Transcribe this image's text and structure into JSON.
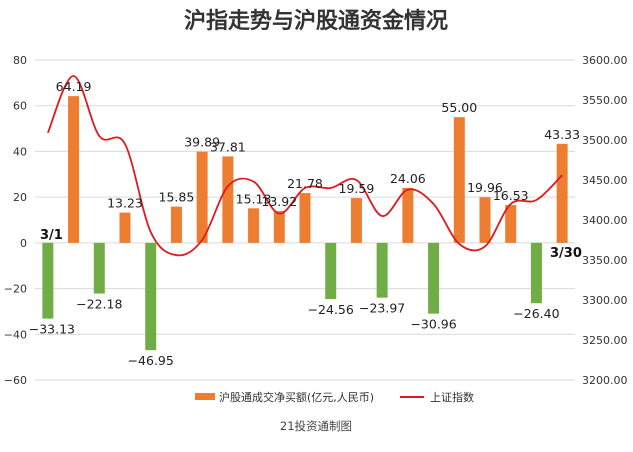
{
  "chart_data": {
    "type": "bar",
    "title": "沪指走势与沪股通资金情况",
    "source": "21投资通制图",
    "start_label": "3/1",
    "end_label": "3/30",
    "left_axis": {
      "min": -60,
      "max": 80,
      "step": 20,
      "ticks": [
        "−60",
        "−40",
        "−20",
        "0",
        "20",
        "40",
        "60",
        "80"
      ]
    },
    "right_axis": {
      "min": 3200,
      "max": 3600,
      "step": 50,
      "ticks": [
        "3200.00",
        "3250.00",
        "3300.00",
        "3350.00",
        "3400.00",
        "3450.00",
        "3500.00",
        "3550.00",
        "3600.00"
      ]
    },
    "colors": {
      "positive": "#ed7d31",
      "negative": "#70ad47",
      "line": "#e0191d",
      "grid": "#d9d9d9"
    },
    "series": [
      {
        "name": "沪股通成交净买额(亿元,人民币)",
        "kind": "bar",
        "values": [
          -33.13,
          64.19,
          -22.18,
          13.23,
          -46.95,
          15.85,
          39.89,
          37.81,
          15.13,
          13.92,
          21.78,
          -24.56,
          19.59,
          -23.97,
          24.06,
          -30.96,
          55.0,
          19.96,
          16.53,
          -26.4,
          43.33
        ],
        "labels": [
          "−33.13",
          "64.19",
          "−22.18",
          "13.23",
          "−46.95",
          "15.85",
          "39.89",
          "37.81",
          "15.13",
          "13.92",
          "21.78",
          "−24.56",
          "19.59",
          "−23.97",
          "24.06",
          "−30.96",
          "55.00",
          "19.96",
          "16.53",
          "−26.40",
          "43.33"
        ]
      },
      {
        "name": "上证指数",
        "kind": "line",
        "values": [
          3509,
          3580,
          3505,
          3495,
          3385,
          3356,
          3375,
          3442,
          3448,
          3408,
          3440,
          3440,
          3450,
          3405,
          3438,
          3420,
          3370,
          3367,
          3420,
          3425,
          3456
        ]
      }
    ]
  }
}
